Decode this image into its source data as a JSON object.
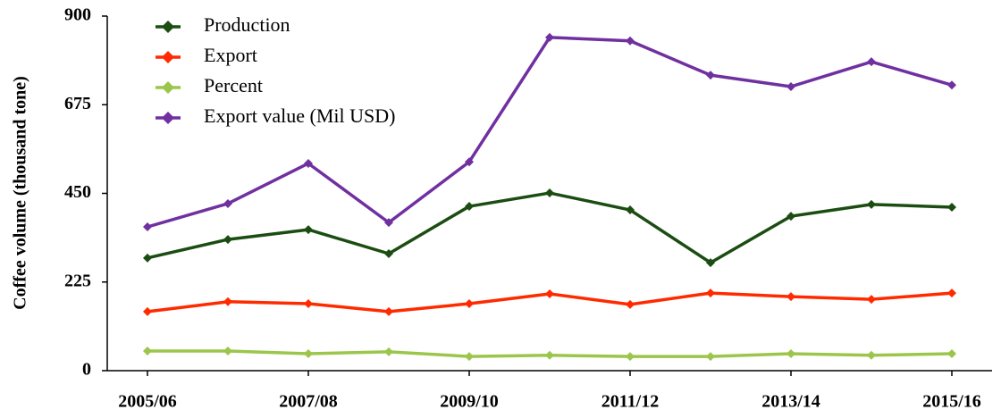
{
  "chart_data": {
    "type": "line",
    "ylabel": "Coffee volume (thousand tone)",
    "categories": [
      "2005/06",
      null,
      "2007/08",
      null,
      "2009/10",
      null,
      "2011/12",
      null,
      "2013/14",
      null,
      "2015/16"
    ],
    "series": [
      {
        "name": "Production",
        "color": "#1b4d12",
        "values": [
          286,
          333,
          358,
          297,
          417,
          451,
          408,
          274,
          392,
          422,
          415
        ]
      },
      {
        "name": "Export",
        "color": "#ff2a00",
        "values": [
          150,
          175,
          170,
          150,
          170,
          195,
          168,
          197,
          188,
          181,
          197
        ]
      },
      {
        "name": "Percent",
        "color": "#9bc64b",
        "values": [
          50,
          50,
          43,
          48,
          36,
          39,
          36,
          36,
          43,
          39,
          43
        ]
      },
      {
        "name": "Export value (Mil USD)",
        "color": "#7030a0",
        "values": [
          365,
          424,
          526,
          376,
          530,
          846,
          837,
          750,
          721,
          784,
          725
        ]
      }
    ],
    "ylim": [
      0,
      900
    ],
    "yticks": [
      0,
      225,
      450,
      675,
      900
    ],
    "legend": "upper left"
  }
}
